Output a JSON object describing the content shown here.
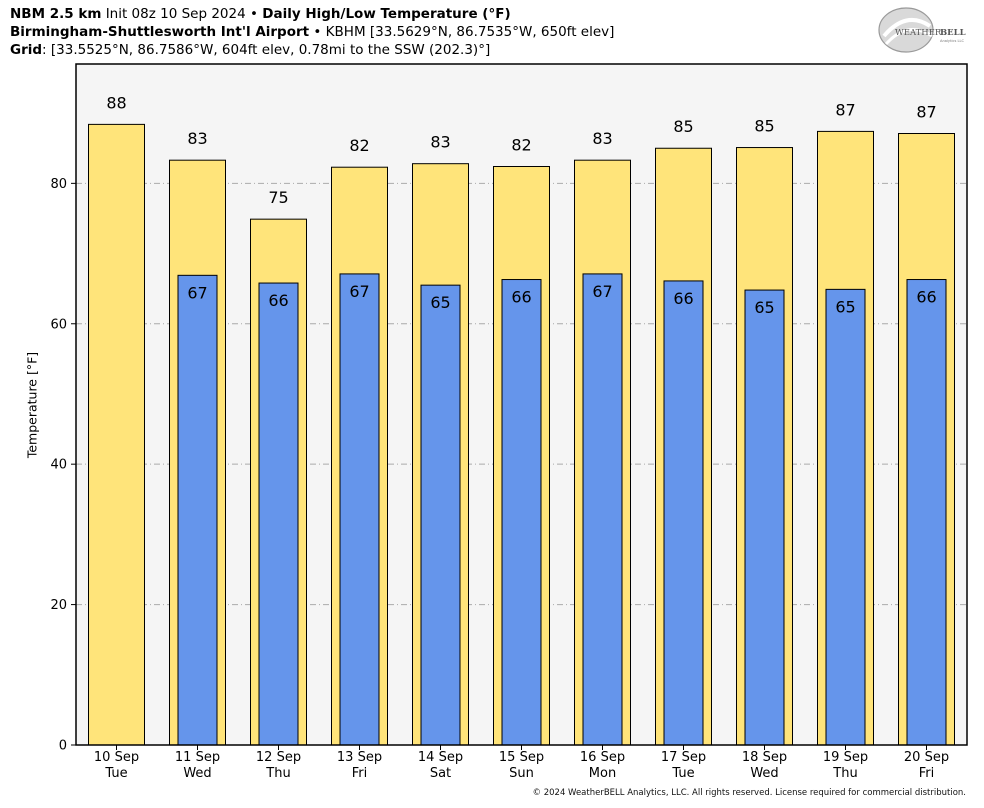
{
  "header": {
    "line1": {
      "model": "NBM 2.5 km",
      "init": "Init 08z 10 Sep 2024",
      "sep": "•",
      "product": "Daily High/Low Temperature (°F)"
    },
    "line2": {
      "station": "Birmingham-Shuttlesworth Int'l Airport",
      "sep": "•",
      "details": "KBHM [33.5629°N, 86.7535°W, 650ft elev]"
    },
    "line3": {
      "label": "Grid",
      "details": ": [33.5525°N, 86.7586°W, 604ft elev, 0.78mi to the SSW (202.3)°]"
    }
  },
  "logo": {
    "text_main": "WEATHER",
    "text_accent": "BELL",
    "text_sub": "Analytics LLC"
  },
  "copyright": "© 2024 WeatherBELL Analytics, LLC. All rights reserved. License required for commercial distribution.",
  "colors": {
    "high": "#ffe47a",
    "low": "#6595eb",
    "plot_bg": "#f5f5f5",
    "grid": "#aaaaaa"
  },
  "chart_data": {
    "type": "bar",
    "ylabel": "Temperature [°F]",
    "ylim": [
      0,
      97
    ],
    "yticks": [
      0,
      20,
      40,
      60,
      80
    ],
    "grid": "horizontal-dashed",
    "categories": [
      {
        "date": "10 Sep",
        "day": "Tue"
      },
      {
        "date": "11 Sep",
        "day": "Wed"
      },
      {
        "date": "12 Sep",
        "day": "Thu"
      },
      {
        "date": "13 Sep",
        "day": "Fri"
      },
      {
        "date": "14 Sep",
        "day": "Sat"
      },
      {
        "date": "15 Sep",
        "day": "Sun"
      },
      {
        "date": "16 Sep",
        "day": "Mon"
      },
      {
        "date": "17 Sep",
        "day": "Tue"
      },
      {
        "date": "18 Sep",
        "day": "Wed"
      },
      {
        "date": "19 Sep",
        "day": "Thu"
      },
      {
        "date": "20 Sep",
        "day": "Fri"
      }
    ],
    "series": [
      {
        "values": [
          88.4,
          83.3,
          74.9,
          82.3,
          82.8,
          82.4,
          83.3,
          85.0,
          85.1,
          87.4,
          87.1
        ],
        "labels": [
          "88",
          "83",
          "75",
          "82",
          "83",
          "82",
          "83",
          "85",
          "85",
          "87",
          "87"
        ]
      },
      {
        "values": [
          null,
          66.9,
          65.8,
          67.1,
          65.5,
          66.3,
          67.1,
          66.1,
          64.8,
          64.9,
          66.3
        ],
        "labels": [
          null,
          "67",
          "66",
          "67",
          "65",
          "66",
          "67",
          "66",
          "65",
          "65",
          "66"
        ]
      }
    ]
  }
}
